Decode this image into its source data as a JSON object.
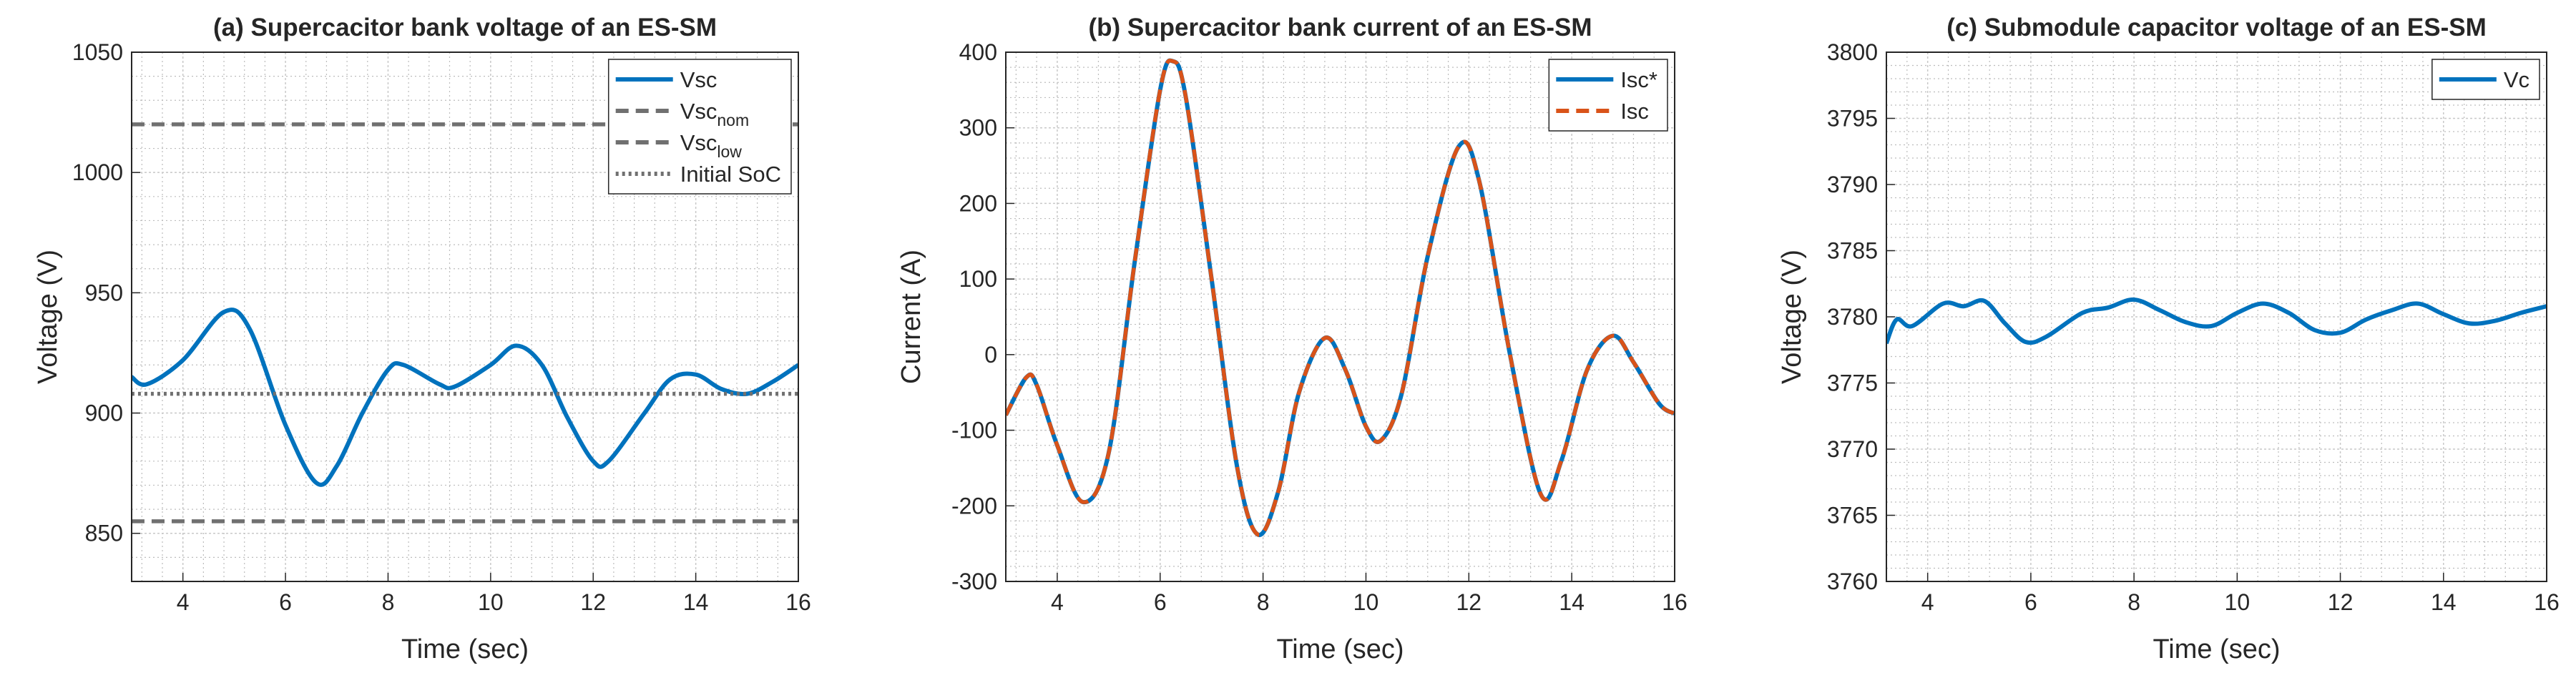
{
  "chart_data": [
    {
      "type": "line",
      "title": "(a) Supercacitor bank voltage of an ES-SM",
      "xlabel": "Time (sec)",
      "ylabel": "Voltage (V)",
      "xlim": [
        3,
        16
      ],
      "ylim": [
        830,
        1050
      ],
      "xticks": [
        4,
        6,
        8,
        10,
        12,
        14,
        16
      ],
      "yticks": [
        850,
        900,
        950,
        1000,
        1050
      ],
      "grid": true,
      "legend": "northeast",
      "series": [
        {
          "name": "Vsc",
          "color": "#0072BD",
          "style": "solid",
          "x": [
            3,
            3.3,
            4,
            4.8,
            5.3,
            6,
            6.6,
            7,
            7.5,
            8,
            8.3,
            9,
            9.3,
            10,
            10.5,
            11,
            11.5,
            12,
            12.3,
            13,
            13.5,
            14,
            14.5,
            15,
            15.5,
            16
          ],
          "values": [
            915,
            912,
            922,
            942,
            935,
            895,
            871,
            878,
            900,
            918,
            920,
            912,
            911,
            920,
            928,
            920,
            898,
            880,
            880,
            900,
            914,
            916,
            910,
            908,
            913,
            920
          ]
        },
        {
          "name": "Vsc",
          "name_sub": "nom",
          "color": "#707070",
          "style": "dashed",
          "x": [
            3,
            16
          ],
          "values": [
            1020,
            1020
          ]
        },
        {
          "name": "Vsc",
          "name_sub": "low",
          "color": "#707070",
          "style": "dashed",
          "x": [
            3,
            16
          ],
          "values": [
            855,
            855
          ]
        },
        {
          "name": "Initial SoC",
          "color": "#707070",
          "style": "dotted",
          "x": [
            3,
            16
          ],
          "values": [
            908,
            908
          ]
        }
      ]
    },
    {
      "type": "line",
      "title": "(b) Supercacitor bank current of an ES-SM",
      "xlabel": "Time (sec)",
      "ylabel": "Current (A)",
      "xlim": [
        3,
        16
      ],
      "ylim": [
        -300,
        400
      ],
      "xticks": [
        4,
        6,
        8,
        10,
        12,
        14,
        16
      ],
      "yticks": [
        -300,
        -200,
        -100,
        0,
        100,
        200,
        300,
        400
      ],
      "grid": true,
      "legend": "northeast",
      "series": [
        {
          "name": "Isc*",
          "color": "#0072BD",
          "style": "solid",
          "x": [
            3,
            3.4,
            3.6,
            4,
            4.5,
            5,
            5.5,
            6,
            6.25,
            6.5,
            7,
            7.5,
            7.9,
            8.3,
            8.7,
            9.2,
            9.6,
            10,
            10.3,
            10.7,
            11.2,
            11.8,
            12.2,
            12.8,
            13.4,
            13.8,
            14.3,
            14.8,
            15.2,
            15.7,
            16
          ],
          "values": [
            -80,
            -30,
            -40,
            -120,
            -195,
            -130,
            120,
            350,
            388,
            340,
            100,
            -150,
            -238,
            -180,
            -50,
            22,
            -20,
            -95,
            -113,
            -50,
            130,
            275,
            230,
            0,
            -185,
            -140,
            -20,
            25,
            -10,
            -65,
            -78
          ]
        },
        {
          "name": "Isc",
          "color": "#D95319",
          "style": "dashed",
          "x": [
            3,
            3.4,
            3.6,
            4,
            4.5,
            5,
            5.5,
            6,
            6.25,
            6.5,
            7,
            7.5,
            7.9,
            8.3,
            8.7,
            9.2,
            9.6,
            10,
            10.3,
            10.7,
            11.2,
            11.8,
            12.2,
            12.8,
            13.4,
            13.8,
            14.3,
            14.8,
            15.2,
            15.7,
            16
          ],
          "values": [
            -80,
            -30,
            -40,
            -120,
            -195,
            -130,
            120,
            350,
            388,
            340,
            100,
            -150,
            -238,
            -180,
            -50,
            22,
            -20,
            -95,
            -113,
            -50,
            130,
            275,
            230,
            0,
            -185,
            -140,
            -20,
            25,
            -10,
            -65,
            -78
          ]
        }
      ]
    },
    {
      "type": "line",
      "title": "(c) Submodule capacitor voltage of an ES-SM",
      "xlabel": "Time (sec)",
      "ylabel": "Voltage (V)",
      "xlim": [
        3.2,
        16
      ],
      "ylim": [
        3760,
        3800
      ],
      "xticks": [
        4,
        6,
        8,
        10,
        12,
        14,
        16
      ],
      "yticks": [
        3760,
        3765,
        3770,
        3775,
        3780,
        3785,
        3790,
        3795,
        3800
      ],
      "grid": true,
      "legend": "northeast",
      "series": [
        {
          "name": "Vc",
          "color": "#0072BD",
          "style": "solid",
          "x": [
            3.2,
            3.4,
            3.7,
            4.3,
            4.7,
            5.1,
            5.5,
            5.9,
            6.3,
            7,
            7.5,
            8,
            8.5,
            9,
            9.5,
            10,
            10.5,
            11,
            11.5,
            12,
            12.5,
            13,
            13.5,
            14,
            14.5,
            15,
            15.5,
            16
          ],
          "values": [
            3778,
            3779.8,
            3779.3,
            3781,
            3780.8,
            3781.2,
            3779.5,
            3778.1,
            3778.5,
            3780.3,
            3780.7,
            3781.3,
            3780.5,
            3779.6,
            3779.3,
            3780.3,
            3781,
            3780.3,
            3779,
            3778.8,
            3779.8,
            3780.5,
            3781,
            3780.2,
            3779.5,
            3779.7,
            3780.3,
            3780.8
          ]
        }
      ]
    }
  ]
}
